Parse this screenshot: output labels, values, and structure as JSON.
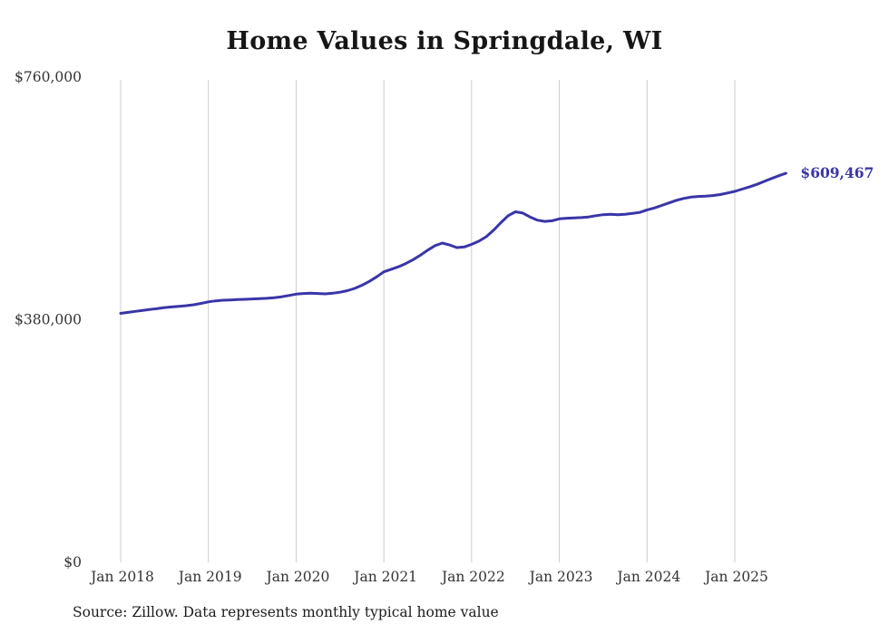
{
  "title": "Home Values in Springdale, WI",
  "source_note": "Source: Zillow. Data represents monthly typical home value",
  "colors": {
    "line": "#3a35a8",
    "grid": "#cccccc",
    "axis_text": "#333333",
    "title_text": "#161616"
  },
  "chart_data": {
    "type": "line",
    "title": "Home Values in Springdale, WI",
    "xlabel": "",
    "ylabel": "",
    "ylim": [
      0,
      760000
    ],
    "grid": "vertical-only",
    "legend": "none",
    "x_start": "2018-01",
    "x_end": "2025-08",
    "frequency": "monthly",
    "x_tick_labels": [
      "Jan 2018",
      "Jan 2019",
      "Jan 2020",
      "Jan 2021",
      "Jan 2022",
      "Jan 2023",
      "Jan 2024",
      "Jan 2025"
    ],
    "y_ticks": [
      {
        "label": "$760,000",
        "value": 760000
      },
      {
        "label": "$380,000",
        "value": 380000
      },
      {
        "label": "$0",
        "value": 0
      }
    ],
    "annotation": "$609,467",
    "end_value": 609467,
    "series": [
      {
        "name": "Typical home value",
        "values": [
          390000,
          391500,
          393000,
          394500,
          396000,
          397500,
          399000,
          400000,
          401000,
          402000,
          403500,
          405500,
          408000,
          409500,
          410500,
          411000,
          411500,
          412000,
          412500,
          413000,
          413500,
          414500,
          416000,
          418000,
          420000,
          421000,
          421500,
          421000,
          420500,
          421500,
          423000,
          425500,
          429000,
          434000,
          440000,
          447000,
          455000,
          459000,
          463000,
          468000,
          474000,
          481000,
          489000,
          496000,
          500000,
          497000,
          493000,
          494000,
          498000,
          503000,
          510000,
          520000,
          532000,
          543000,
          549000,
          547000,
          541000,
          536000,
          534000,
          535000,
          538000,
          539000,
          539500,
          540000,
          541000,
          543000,
          544500,
          545000,
          544500,
          545000,
          546500,
          548000,
          552000,
          555000,
          559000,
          563000,
          567000,
          570000,
          572000,
          573000,
          573500,
          574500,
          576000,
          578500,
          581000,
          584500,
          588000,
          592000,
          596500,
          601000,
          605500,
          609467
        ]
      }
    ]
  }
}
